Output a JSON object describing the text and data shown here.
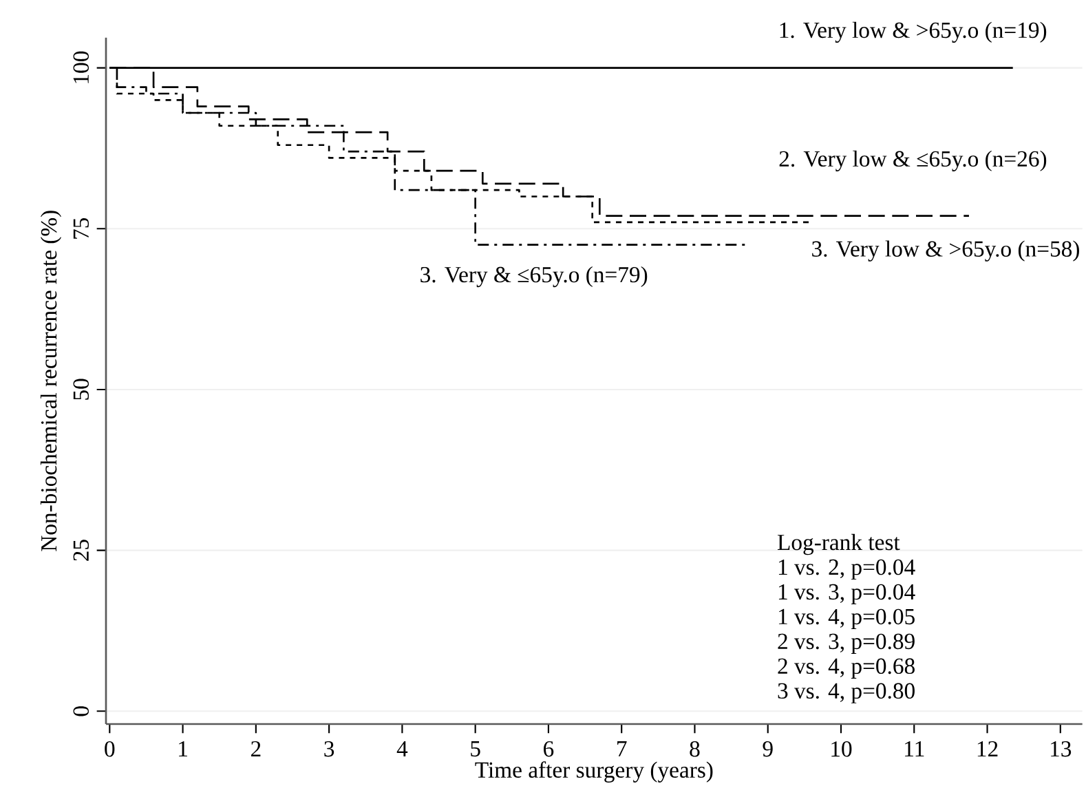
{
  "chart_data": {
    "type": "step",
    "xlabel": "Time after surgery (years)",
    "ylabel": "Non-biochemical recurrence rate (%)",
    "xlim": [
      -0.05,
      13.3
    ],
    "ylim": [
      -2,
      104.7
    ],
    "xticks": [
      0,
      1,
      2,
      3,
      4,
      5,
      6,
      7,
      8,
      9,
      10,
      11,
      12,
      13
    ],
    "yticks": [
      0,
      25,
      50,
      75,
      100
    ],
    "grid": "y",
    "legend": false,
    "series": [
      {
        "name": "1. Very low & >65y.o (n=19)",
        "color": "#000000",
        "line_style": "solid",
        "x": [
          0,
          12.35
        ],
        "values": [
          100,
          100
        ]
      },
      {
        "name": "2. Very low & ≤65y.o (n=26)",
        "color": "#000000",
        "line_style": "dashed",
        "x": [
          0,
          0.6,
          1.2,
          1.9,
          2.7,
          3.8,
          4.3,
          5.1,
          6.2,
          6.7,
          11.75
        ],
        "values": [
          100,
          97,
          94,
          92,
          90,
          87,
          84,
          82,
          80,
          77,
          77
        ]
      },
      {
        "name": "3. Very low & >65y.o (n=58)",
        "color": "#000000",
        "line_style": "dotted",
        "x": [
          0,
          0.1,
          0.6,
          1.0,
          1.5,
          2.3,
          3.0,
          3.9,
          4.4,
          5.6,
          6.6,
          9.6
        ],
        "values": [
          100,
          96,
          95,
          93,
          91,
          88,
          86,
          84,
          81,
          80,
          76,
          76
        ]
      },
      {
        "name": "3. Very & ≤65y.o (n=79)",
        "color": "#000000",
        "line_style": "dashdot",
        "x": [
          0,
          0.1,
          0.5,
          1.0,
          2.0,
          3.2,
          3.9,
          5.0,
          8.7
        ],
        "values": [
          100,
          97,
          96,
          93,
          91,
          87,
          81,
          72.5,
          72.5
        ]
      }
    ],
    "annotations": [
      "Log-rank test",
      "1 vs. 2, p=0.04",
      "1 vs. 3, p=0.04",
      "1 vs. 4, p=0.05",
      "2 vs. 3, p=0.89",
      "2 vs. 4, p=0.68",
      "3 vs. 4, p=0.80"
    ]
  }
}
